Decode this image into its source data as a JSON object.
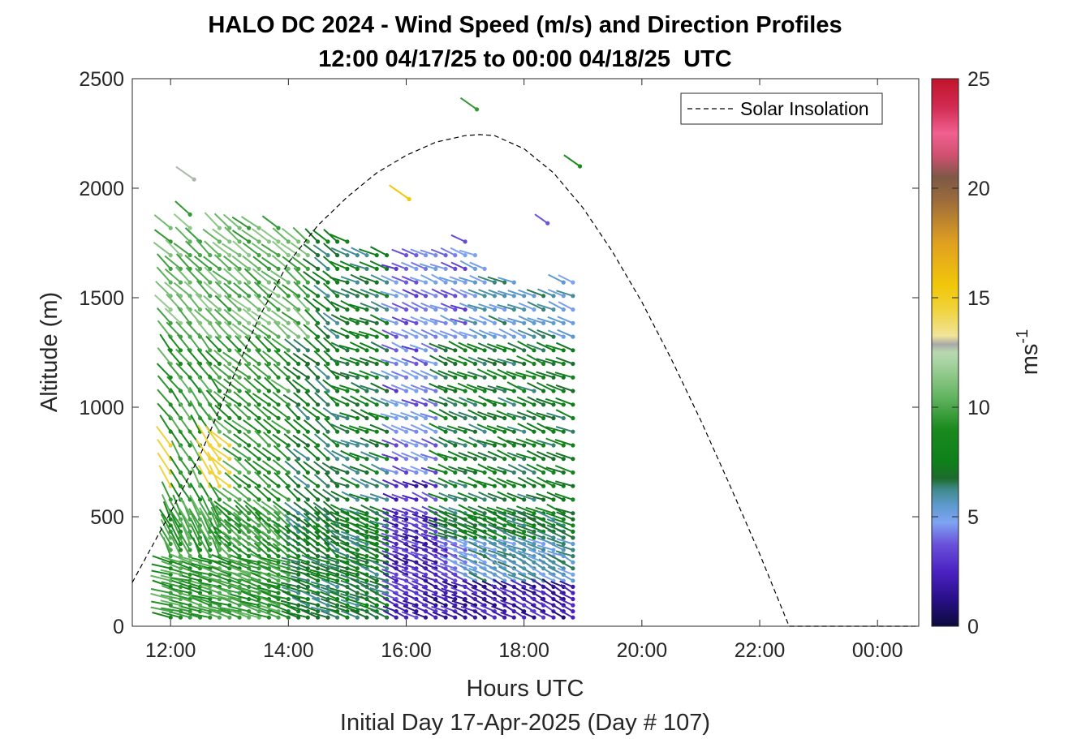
{
  "chart_data": {
    "type": "wind-barb-profile",
    "title": "HALO DC 2024 - Wind Speed (m/s) and Direction Profiles",
    "subtitle": "12:00 04/17/25 to 00:00 04/18/25  UTC",
    "xlabel": "Hours UTC",
    "xlabel2": "Initial Day 17-Apr-2025 (Day # 107)",
    "ylabel": "Altitude (m)",
    "x_ticks": [
      "12:00",
      "14:00",
      "16:00",
      "18:00",
      "20:00",
      "22:00",
      "00:00"
    ],
    "x_tick_hours": [
      12,
      14,
      16,
      18,
      20,
      22,
      24
    ],
    "xlim_hours": [
      11.35,
      24.7
    ],
    "ylim": [
      0,
      2500
    ],
    "y_ticks": [
      "0",
      "500",
      "1000",
      "1500",
      "2000",
      "2500"
    ],
    "y_tick_values": [
      0,
      500,
      1000,
      1500,
      2000,
      2500
    ],
    "colorbar": {
      "label": "ms",
      "label_superscript": "-1",
      "range": [
        0,
        25
      ],
      "ticks": [
        "0",
        "5",
        "10",
        "15",
        "20",
        "25"
      ],
      "tick_values": [
        0,
        5,
        10,
        15,
        20,
        25
      ]
    },
    "legend": {
      "entries": [
        "Solar Insolation"
      ],
      "placement": "top-right"
    },
    "solar_insolation": {
      "style": "dashed",
      "color": "#000000",
      "x_hours": [
        11.35,
        12.0,
        12.5,
        13.0,
        13.5,
        14.0,
        14.5,
        15.0,
        15.5,
        16.0,
        16.5,
        17.0,
        17.25,
        17.5,
        18.0,
        18.5,
        19.0,
        19.5,
        20.0,
        20.5,
        21.0,
        21.5,
        22.0,
        22.5,
        23.0,
        23.5,
        24.0,
        24.7
      ],
      "values": [
        200,
        520,
        780,
        1100,
        1410,
        1660,
        1830,
        1960,
        2070,
        2150,
        2210,
        2240,
        2245,
        2240,
        2180,
        2070,
        1910,
        1710,
        1480,
        1220,
        940,
        640,
        330,
        0,
        0,
        0,
        0,
        0
      ]
    },
    "profile_times_hours": [
      12.0,
      12.17,
      12.33,
      12.5,
      12.67,
      12.83,
      13.0,
      13.17,
      13.33,
      13.5,
      13.67,
      13.83,
      14.0,
      14.17,
      14.33,
      14.5,
      14.67,
      14.83,
      15.0,
      15.17,
      15.33,
      15.5,
      15.67,
      15.83,
      16.0,
      16.17,
      16.33,
      16.5,
      16.67,
      16.83,
      17.0,
      17.17,
      17.33,
      17.5,
      17.67,
      17.83,
      18.0,
      18.17,
      18.33,
      18.5,
      18.67,
      18.83
    ],
    "profile_top_altitudes": [
      1850,
      1720,
      1880,
      1800,
      1700,
      1830,
      1840,
      1870,
      1850,
      1860,
      1810,
      1830,
      1800,
      1780,
      1800,
      1760,
      1770,
      1800,
      1760,
      1720,
      1700,
      1720,
      1700,
      1690,
      1700,
      1720,
      1740,
      1730,
      1700,
      1720,
      1760,
      1700,
      1660,
      1630,
      1600,
      1620,
      1560,
      1560,
      1560,
      1540,
      1570,
      1570
    ],
    "isolated_barbs": [
      {
        "x_hour": 12.4,
        "altitude": 2040,
        "speed": 12.5
      },
      {
        "x_hour": 16.05,
        "altitude": 1950,
        "speed": 15.5
      },
      {
        "x_hour": 17.2,
        "altitude": 2360,
        "speed": 9.5
      },
      {
        "x_hour": 18.4,
        "altitude": 1840,
        "speed": 3.5
      },
      {
        "x_hour": 18.95,
        "altitude": 2100,
        "speed": 9.0
      }
    ],
    "speed_regimes": [
      {
        "hours": [
          11.9,
          13.2
        ],
        "altitudes": [
          600,
          850
        ],
        "speed": 14.5,
        "note": ""
      },
      {
        "hours": [
          11.9,
          14.1
        ],
        "altitudes": [
          0,
          1900
        ],
        "speed": 9.5,
        "note": ""
      },
      {
        "hours": [
          14.1,
          15.7
        ],
        "altitudes": [
          0,
          1800
        ],
        "speed": 7.0,
        "note": ""
      },
      {
        "hours": [
          15.7,
          17.0
        ],
        "altitudes": [
          0,
          1700
        ],
        "speed": 4.0,
        "note": ""
      },
      {
        "hours": [
          17.0,
          18.85
        ],
        "altitudes": [
          0,
          1600
        ],
        "speed": 5.5,
        "note": ""
      }
    ]
  },
  "colors": {
    "axes": "#262626",
    "background": "#ffffff"
  }
}
